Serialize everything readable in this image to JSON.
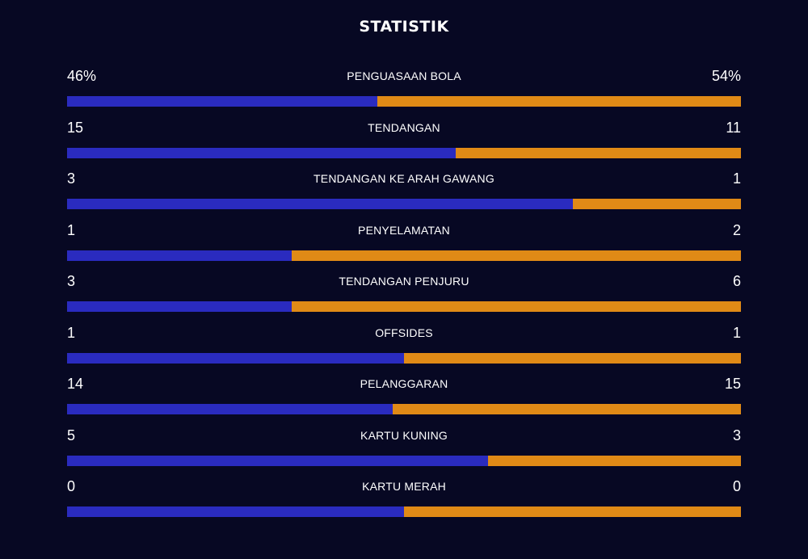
{
  "title": "STATISTIK",
  "colors": {
    "background": "#070823",
    "home": "#2a2bbf",
    "away": "#e08a16",
    "text": "#ffffff"
  },
  "stats": [
    {
      "label": "PENGUASAAN BOLA",
      "home": "46%",
      "away": "54%",
      "home_share": 0.46
    },
    {
      "label": "TENDANGAN",
      "home": "15",
      "away": "11",
      "home_share": 0.577
    },
    {
      "label": "TENDANGAN KE ARAH GAWANG",
      "home": "3",
      "away": "1",
      "home_share": 0.75
    },
    {
      "label": "PENYELAMATAN",
      "home": "1",
      "away": "2",
      "home_share": 0.333
    },
    {
      "label": "TENDANGAN PENJURU",
      "home": "3",
      "away": "6",
      "home_share": 0.333
    },
    {
      "label": "OFFSIDES",
      "home": "1",
      "away": "1",
      "home_share": 0.5
    },
    {
      "label": "PELANGGARAN",
      "home": "14",
      "away": "15",
      "home_share": 0.483
    },
    {
      "label": "KARTU KUNING",
      "home": "5",
      "away": "3",
      "home_share": 0.625
    },
    {
      "label": "KARTU MERAH",
      "home": "0",
      "away": "0",
      "home_share": 0.5
    }
  ]
}
